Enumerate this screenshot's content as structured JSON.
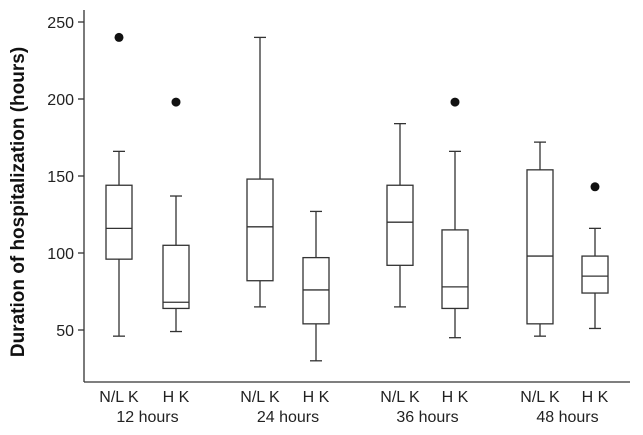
{
  "chart_data": {
    "type": "box",
    "ylabel": "Duration of hospitalization (hours)",
    "ylim": [
      25,
      255
    ],
    "yticks": [
      50,
      100,
      150,
      200,
      250
    ],
    "groups": [
      "12 hours",
      "24 hours",
      "36 hours",
      "48 hours"
    ],
    "box_labels": [
      "N/L K",
      "H K"
    ],
    "boxes": [
      {
        "group": "12 hours",
        "label": "N/L K",
        "min": 46,
        "q1": 96,
        "median": 116,
        "q3": 144,
        "max": 166,
        "outliers": [
          240
        ]
      },
      {
        "group": "12 hours",
        "label": "H K",
        "min": 49,
        "q1": 64,
        "median": 68,
        "q3": 105,
        "max": 137,
        "outliers": [
          198
        ]
      },
      {
        "group": "24 hours",
        "label": "N/L K",
        "min": 65,
        "q1": 82,
        "median": 117,
        "q3": 148,
        "max": 240,
        "outliers": []
      },
      {
        "group": "24 hours",
        "label": "H K",
        "min": 30,
        "q1": 54,
        "median": 76,
        "q3": 97,
        "max": 127,
        "outliers": []
      },
      {
        "group": "36 hours",
        "label": "N/L K",
        "min": 65,
        "q1": 92,
        "median": 120,
        "q3": 144,
        "max": 184,
        "outliers": []
      },
      {
        "group": "36 hours",
        "label": "H K",
        "min": 45,
        "q1": 64,
        "median": 78,
        "q3": 115,
        "max": 166,
        "outliers": [
          198
        ]
      },
      {
        "group": "48 hours",
        "label": "N/L K",
        "min": 46,
        "q1": 54,
        "median": 98,
        "q3": 154,
        "max": 172,
        "outliers": []
      },
      {
        "group": "48 hours",
        "label": "H K",
        "min": 51,
        "q1": 74,
        "median": 85,
        "q3": 98,
        "max": 116,
        "outliers": [
          143
        ]
      }
    ]
  }
}
